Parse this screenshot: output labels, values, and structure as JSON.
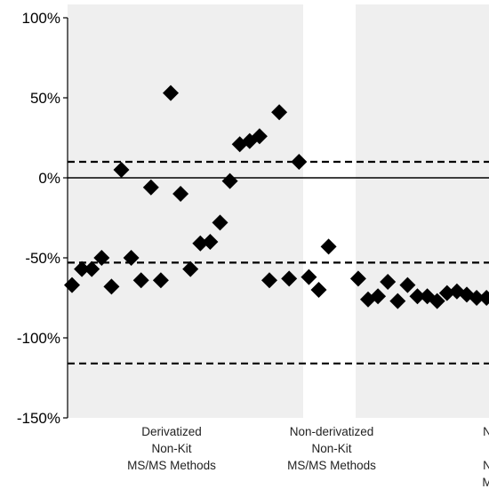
{
  "chart_data": {
    "type": "scatter",
    "ylim": [
      -150,
      100
    ],
    "yticks": [
      "100%",
      "50%",
      "0%",
      "-50%",
      "-100%",
      "-150%"
    ],
    "ytick_values": [
      100,
      50,
      0,
      -50,
      -100,
      -150
    ],
    "reference_lines": {
      "solid": [
        0
      ],
      "dashed": [
        10,
        -53,
        -116
      ]
    },
    "groups": [
      {
        "label_lines": [
          "Derivatized",
          "Non-Kit",
          "MS/MS Methods"
        ],
        "shaded": true
      },
      {
        "label_lines": [
          "Non-derivatized",
          "Non-Kit",
          "MS/MS Methods"
        ],
        "shaded": false
      },
      {
        "label_lines": [
          "N",
          "",
          "N",
          "M"
        ],
        "shaded": true
      }
    ],
    "series": [
      {
        "marker": "diamond",
        "x": [
          1,
          2,
          3,
          4,
          5,
          6,
          7,
          8,
          9,
          10,
          11,
          12,
          13,
          14,
          15,
          16,
          17,
          18,
          19,
          20,
          21,
          22,
          23,
          24,
          25,
          26,
          27,
          30,
          31,
          32,
          33,
          34,
          35,
          36,
          37,
          38,
          39,
          40,
          41,
          42,
          43,
          44,
          45,
          46,
          47,
          48
        ],
        "y": [
          -67,
          -57,
          -57,
          -50,
          -68,
          5,
          -50,
          -64,
          -6,
          -64,
          53,
          -10,
          -57,
          -41,
          -40,
          -28,
          -2,
          21,
          23,
          26,
          -64,
          41,
          -63,
          10,
          -62,
          -70,
          -43,
          -63,
          -76,
          -74,
          -65,
          -77,
          -67,
          -74,
          -74,
          -77,
          -72,
          -71,
          -73,
          -75,
          -75,
          -74,
          -76,
          -77,
          -75,
          -76
        ]
      }
    ],
    "grid": false,
    "legend": "none",
    "marker_color": "#000000",
    "shading_color": "#efefef"
  }
}
